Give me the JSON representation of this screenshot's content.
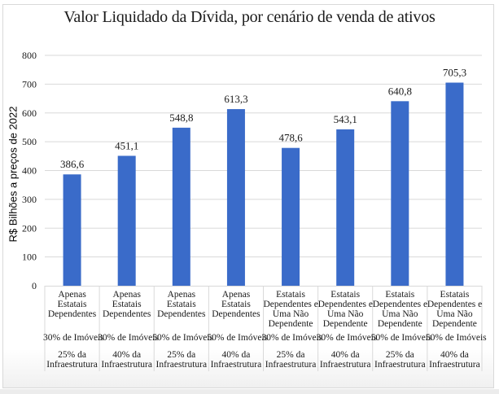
{
  "chart_data": {
    "type": "bar",
    "title": "Valor Liquidado da Dívida, por cenário de venda de ativos",
    "xlabel": "",
    "ylabel": "R$ Bilhões a preços de 2022",
    "ylim": [
      0,
      800
    ],
    "yticks": [
      0,
      100,
      200,
      300,
      400,
      500,
      600,
      700,
      800
    ],
    "grid": true,
    "legend": "none",
    "bar_color": "#3a6bc9",
    "categories": [
      {
        "level1": "Apenas Estatais Dependentes",
        "level1_lines": [
          "Apenas",
          "Estatais",
          "Dependentes"
        ],
        "level2": "30% de Imóveis",
        "level3_lines": [
          "25% da",
          "Infraestrutura"
        ]
      },
      {
        "level1": "Apenas Estatais Dependentes",
        "level1_lines": [
          "Apenas",
          "Estatais",
          "Dependentes"
        ],
        "level2": "30% de Imóveis",
        "level3_lines": [
          "40% da",
          "Infraestrutura"
        ]
      },
      {
        "level1": "Apenas Estatais Dependentes",
        "level1_lines": [
          "Apenas",
          "Estatais",
          "Dependentes"
        ],
        "level2": "50% de Imóveis",
        "level3_lines": [
          "25% da",
          "Infraestrutura"
        ]
      },
      {
        "level1": "Apenas Estatais Dependentes",
        "level1_lines": [
          "Apenas",
          "Estatais",
          "Dependentes"
        ],
        "level2": "50% de Imóveis",
        "level3_lines": [
          "40% da",
          "Infraestrutura"
        ]
      },
      {
        "level1": "Estatais Dependentes e Uma Não Dependente",
        "level1_lines": [
          "Estatais",
          "Dependentes e",
          "Uma Não",
          "Dependente"
        ],
        "level2": "30% de Imóveis",
        "level3_lines": [
          "25% da",
          "Infraestrutura"
        ]
      },
      {
        "level1": "Estatais Dependentes e Uma Não Dependente",
        "level1_lines": [
          "Estatais",
          "Dependentes e",
          "Uma Não",
          "Dependente"
        ],
        "level2": "30% de Imóveis",
        "level3_lines": [
          "40% da",
          "Infraestrutura"
        ]
      },
      {
        "level1": "Estatais Dependentes e Uma Não Dependente",
        "level1_lines": [
          "Estatais",
          "Dependentes e",
          "Uma Não",
          "Dependente"
        ],
        "level2": "50% de Imóveis",
        "level3_lines": [
          "25% da",
          "Infraestrutura"
        ]
      },
      {
        "level1": "Estatais Dependentes e Uma Não Dependente",
        "level1_lines": [
          "Estatais",
          "Dependentes e",
          "Uma Não",
          "Dependente"
        ],
        "level2": "50% de Imóveis",
        "level3_lines": [
          "40% da",
          "Infraestrutura"
        ]
      }
    ],
    "series": [
      {
        "name": "Valor Liquidado da Dívida",
        "values": [
          386.6,
          451.1,
          548.8,
          613.3,
          478.6,
          543.1,
          640.8,
          705.3
        ],
        "data_labels": [
          "386,6",
          "451,1",
          "548,8",
          "613,3",
          "478,6",
          "543,1",
          "640,8",
          "705,3"
        ]
      }
    ]
  }
}
